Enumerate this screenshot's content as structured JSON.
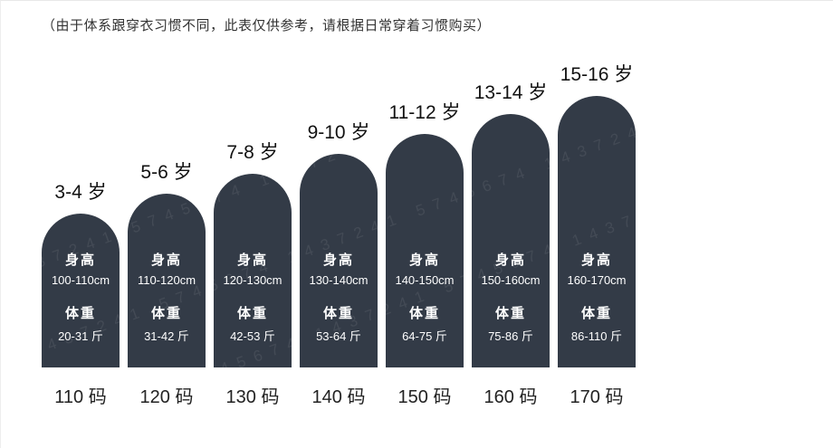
{
  "note": "（由于体系跟穿衣习惯不同，此表仅供参考，请根据日常穿着习惯购买）",
  "labels": {
    "height": "身高",
    "weight": "体重"
  },
  "colors": {
    "bar": "#333b47",
    "text_dark": "#222222",
    "bar_text": "#ffffff"
  },
  "watermark": "1437241 5745674 1437241 5745674 1437241",
  "sizes": [
    {
      "age": "3-4 岁",
      "height": "100-110cm",
      "weight": "20-31 斤",
      "size": "110 码"
    },
    {
      "age": "5-6 岁",
      "height": "110-120cm",
      "weight": "31-42 斤",
      "size": "120 码"
    },
    {
      "age": "7-8 岁",
      "height": "120-130cm",
      "weight": "42-53 斤",
      "size": "130 码"
    },
    {
      "age": "9-10 岁",
      "height": "130-140cm",
      "weight": "53-64 斤",
      "size": "140 码"
    },
    {
      "age": "11-12 岁",
      "height": "140-150cm",
      "weight": "64-75 斤",
      "size": "150 码"
    },
    {
      "age": "13-14 岁",
      "height": "150-160cm",
      "weight": "75-86 斤",
      "size": "160 码"
    },
    {
      "age": "15-16 岁",
      "height": "160-170cm",
      "weight": "86-110 斤",
      "size": "170 码"
    }
  ],
  "chart_data": {
    "type": "bar",
    "categories": [
      "110 码",
      "120 码",
      "130 码",
      "140 码",
      "150 码",
      "160 码",
      "170 码"
    ],
    "age_labels": [
      "3-4 岁",
      "5-6 岁",
      "7-8 岁",
      "9-10 岁",
      "11-12 岁",
      "13-14 岁",
      "15-16 岁"
    ],
    "height_cm": [
      "100-110cm",
      "110-120cm",
      "120-130cm",
      "130-140cm",
      "140-150cm",
      "150-160cm",
      "160-170cm"
    ],
    "weight_jin": [
      "20-31 斤",
      "31-42 斤",
      "42-53 斤",
      "53-64 斤",
      "64-75 斤",
      "75-86 斤",
      "86-110 斤"
    ],
    "note": "（由于体系跟穿衣习惯不同，此表仅供参考，请根据日常穿着习惯购买）",
    "xlabel": "",
    "ylabel": "",
    "grid": false,
    "legend": "none",
    "bar_relative_heights": [
      170,
      192,
      214,
      236,
      258,
      280,
      300
    ]
  }
}
